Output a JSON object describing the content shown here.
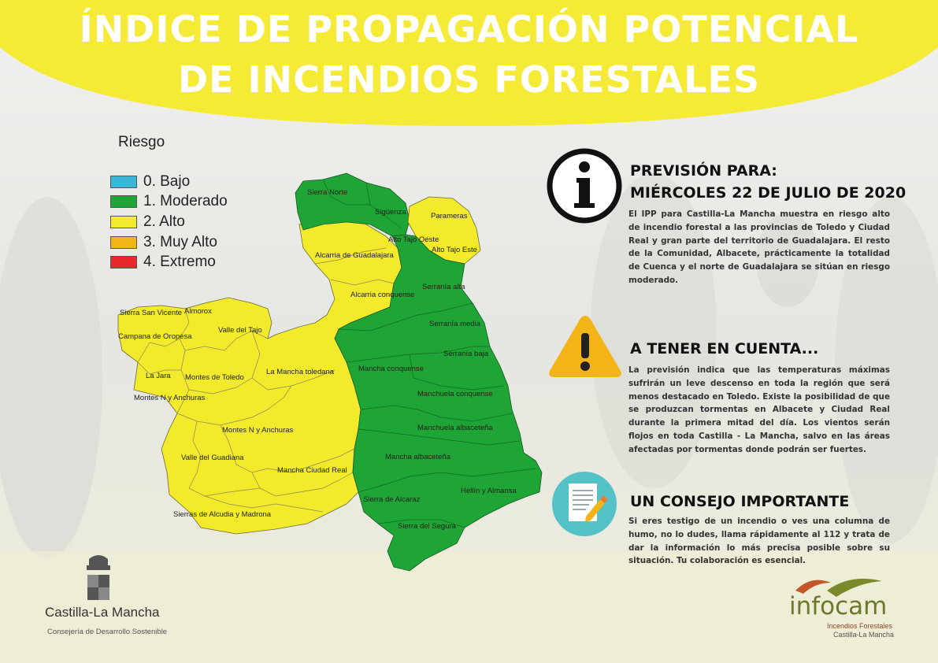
{
  "header": {
    "title_line1": "ÍNDICE DE PROPAGACIÓN POTENCIAL",
    "title_line2": "DE INCENDIOS FORESTALES",
    "band_color": "#f5ea35"
  },
  "legend": {
    "title": "Riesgo",
    "items": [
      {
        "label": "0. Bajo",
        "color": "#3ab7d6"
      },
      {
        "label": "1. Moderado",
        "color": "#1fa535"
      },
      {
        "label": "2. Alto",
        "color": "#f2ea2a"
      },
      {
        "label": "3. Muy Alto",
        "color": "#f2b417"
      },
      {
        "label": "4. Extremo",
        "color": "#e8272a"
      }
    ]
  },
  "map": {
    "regions": [
      {
        "label": "Sierra Norte",
        "risk": "1. Moderado"
      },
      {
        "label": "Sigüenza",
        "risk": "1. Moderado"
      },
      {
        "label": "Parameras",
        "risk": "2. Alto"
      },
      {
        "label": "Alto Tajo Oeste",
        "risk": "1. Moderado"
      },
      {
        "label": "Alto Tajo Este",
        "risk": "2. Alto"
      },
      {
        "label": "Alcarria de Guadalajara",
        "risk": "2. Alto"
      },
      {
        "label": "Serranía alta",
        "risk": "1. Moderado"
      },
      {
        "label": "Alcarria conquense",
        "risk": "2. Alto"
      },
      {
        "label": "Serranía media",
        "risk": "1. Moderado"
      },
      {
        "label": "Serranía baja",
        "risk": "1. Moderado"
      },
      {
        "label": "Sierra San Vicente",
        "risk": "2. Alto"
      },
      {
        "label": "Almorox",
        "risk": "2. Alto"
      },
      {
        "label": "Valle del Tajo",
        "risk": "2. Alto"
      },
      {
        "label": "Campana de Oropesa",
        "risk": "2. Alto"
      },
      {
        "label": "La Mancha toledana",
        "risk": "2. Alto"
      },
      {
        "label": "Mancha conquense",
        "risk": "1. Moderado"
      },
      {
        "label": "La Jara",
        "risk": "2. Alto"
      },
      {
        "label": "Montes de Toledo",
        "risk": "2. Alto"
      },
      {
        "label": "Montes N y Anchuras",
        "risk": "2. Alto"
      },
      {
        "label": "Manchuela conquense",
        "risk": "1. Moderado"
      },
      {
        "label": "Montes N y Anchuras",
        "risk": "2. Alto"
      },
      {
        "label": "Manchuela albaceteña",
        "risk": "1. Moderado"
      },
      {
        "label": "Valle del Guadiana",
        "risk": "2. Alto"
      },
      {
        "label": "Mancha albaceteña",
        "risk": "1. Moderado"
      },
      {
        "label": "Mancha Ciudad Real",
        "risk": "2. Alto"
      },
      {
        "label": "Hellín y Almansa",
        "risk": "1. Moderado"
      },
      {
        "label": "Sierra de Alcaraz",
        "risk": "1. Moderado"
      },
      {
        "label": "Sierras de Alcudia y Madrona",
        "risk": "2. Alto"
      },
      {
        "label": "Sierra del Segura",
        "risk": "1. Moderado"
      }
    ]
  },
  "sections": {
    "forecast": {
      "icon": "info-icon",
      "title_line1": "PREVISIÓN PARA:",
      "title_line2": "MIÉRCOLES 22 DE JULIO DE 2020",
      "body": "El IPP para Castilla-La Mancha muestra en riesgo alto de incendio forestal a las provincias de Toledo y Ciudad Real y gran parte del territorio de Guadalajara. El resto de la Comunidad, Albacete, prácticamente la totalidad de Cuenca y el norte de Guadalajara se sitúan en riesgo moderado."
    },
    "notice": {
      "icon": "warning-icon",
      "title": "A TENER EN CUENTA...",
      "body": "La previsión indica que las temperaturas máximas sufrirán un leve descenso en toda la región que será menos destacado en Toledo. Existe la posibilidad de que se produzcan tormentas en Albacete y Ciudad Real durante la primera mitad del día. Los vientos serán flojos en toda Castilla - La Mancha, salvo en las áreas afectadas por tormentas donde podrán ser fuertes."
    },
    "advice": {
      "icon": "document-pencil-icon",
      "title": "UN CONSEJO IMPORTANTE",
      "body": "Si eres testigo de un incendio o ves una columna de humo, no lo dudes, llama rápidamente al 112 y trata de dar la información lo más precisa posible sobre su situación. Tu colaboración es esencial."
    }
  },
  "footer": {
    "left_name": "Castilla-La Mancha",
    "left_sub": "Consejería de Desarrollo Sostenible",
    "right_name": "infocam",
    "right_sub1": "Incendios Forestales",
    "right_sub2": "Castilla-La Mancha"
  }
}
